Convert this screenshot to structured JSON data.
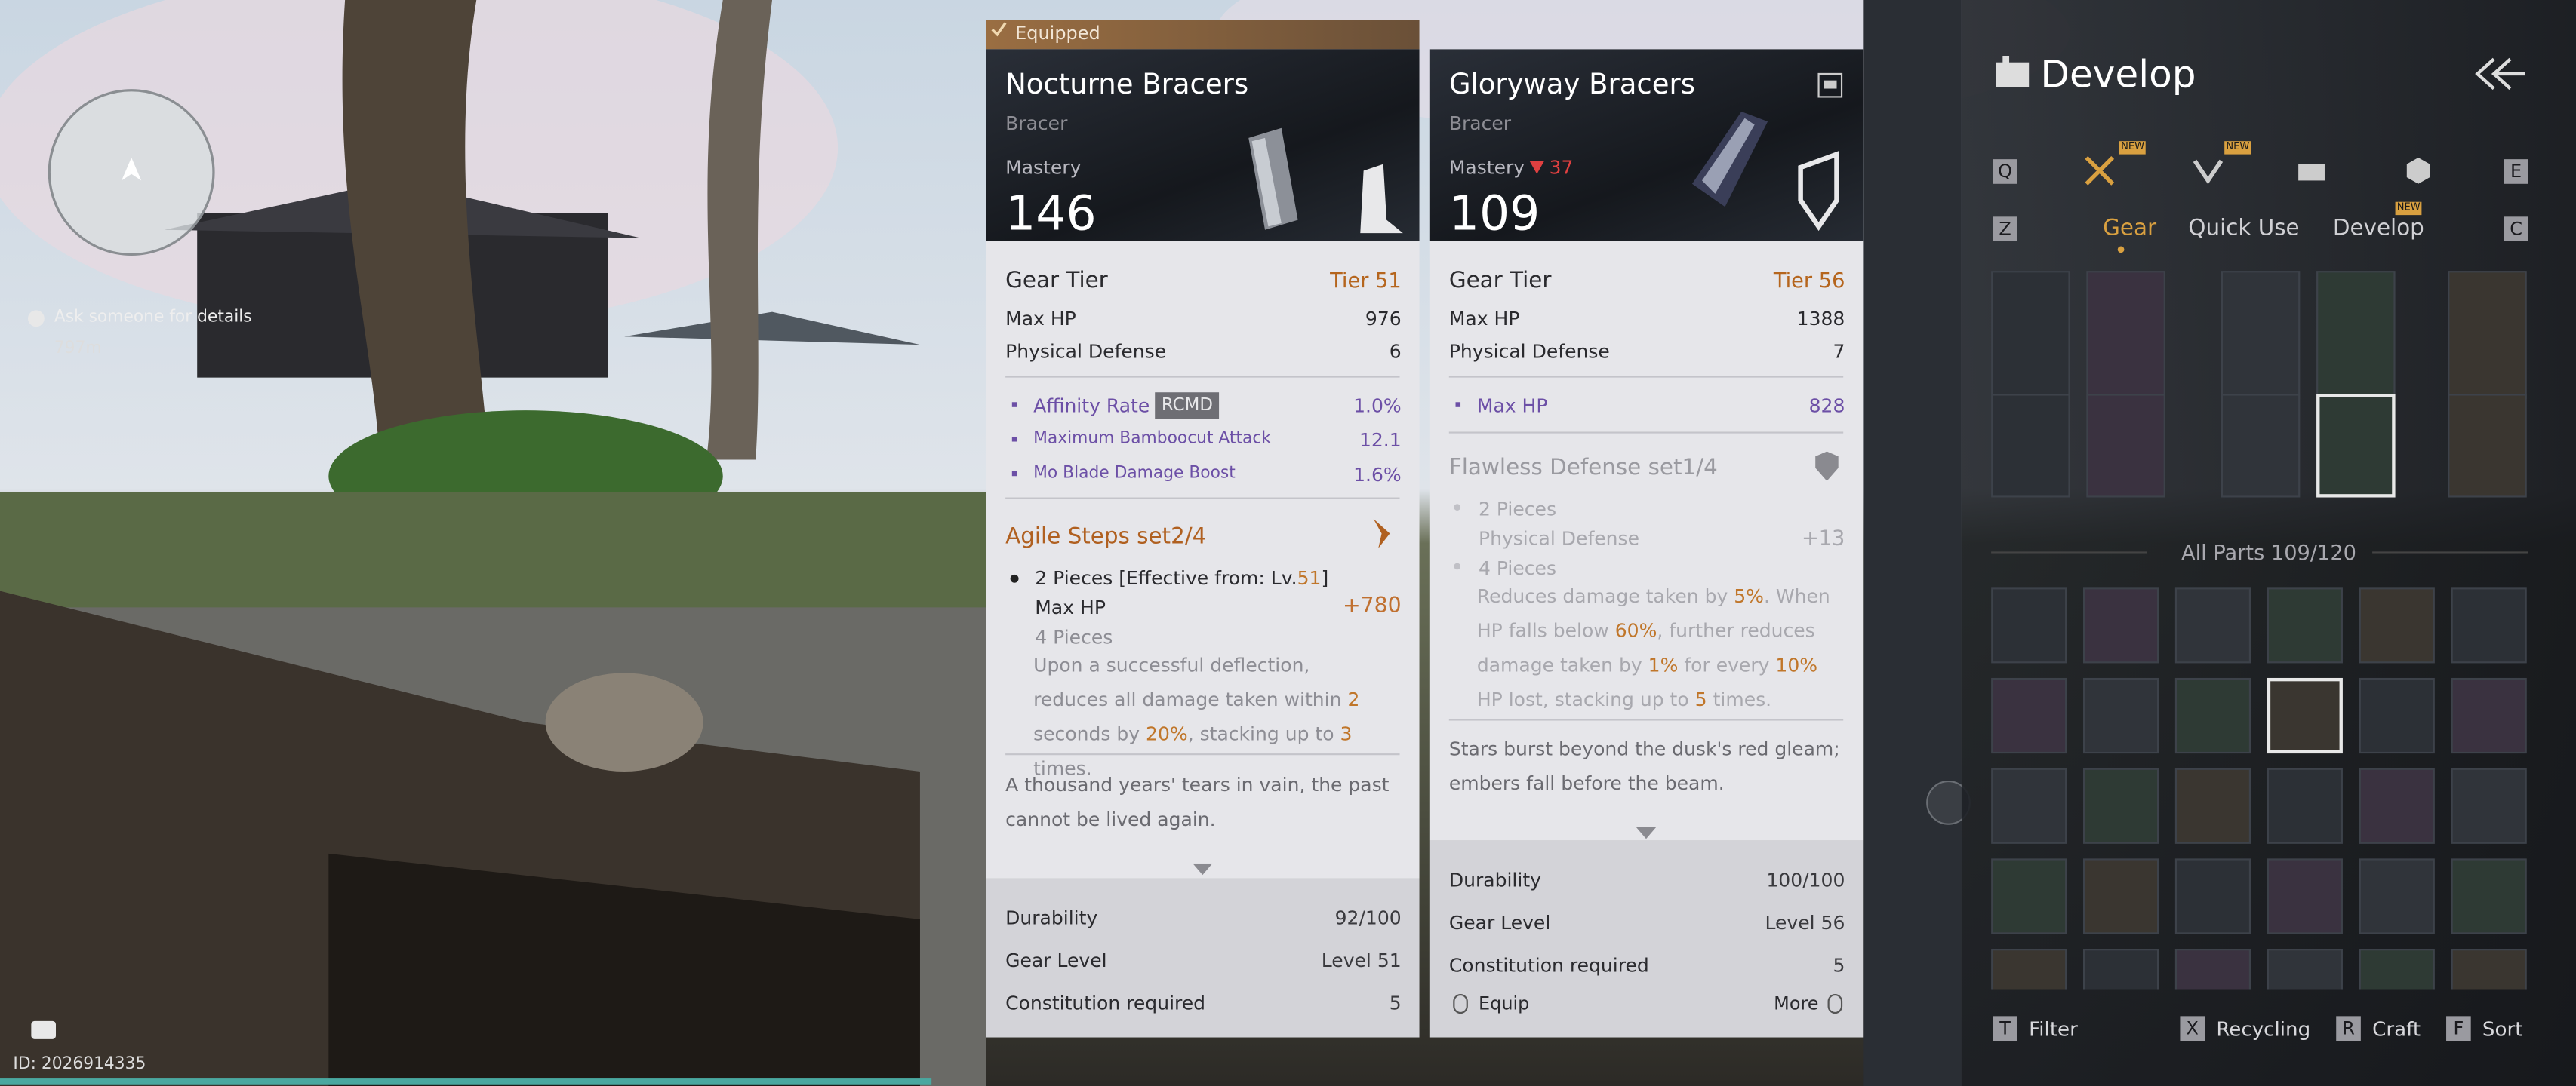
{
  "hud": {
    "quest": "Ask someone for details",
    "distance": "797m",
    "player_id": "ID: 2026914335"
  },
  "equipped": {
    "badge": "Equipped",
    "name": "Nocturne Bracers",
    "type": "Bracer",
    "mastery_label": "Mastery",
    "mastery": "146",
    "tier_label": "Gear Tier",
    "tier": "Tier 51",
    "stats": [
      {
        "label": "Max HP",
        "value": "976"
      },
      {
        "label": "Physical Defense",
        "value": "6"
      }
    ],
    "substats": [
      {
        "label": "Affinity Rate",
        "tag": "RCMD",
        "value": "1.0%"
      },
      {
        "label": "Maximum Bamboocut Attack",
        "value": "12.1"
      },
      {
        "label": "Mo Blade Damage Boost",
        "value": "1.6%"
      }
    ],
    "set_name": "Agile Steps set2/4",
    "piece2": [
      "2 Pieces [Effective from: Lv.",
      "51",
      "]"
    ],
    "piece2_stat": "Max HP",
    "piece2_value": "+780",
    "piece4": "4 Pieces",
    "piece4_desc": [
      "Upon a successful deflection, reduces all damage taken within ",
      "2",
      " seconds by ",
      "20%",
      ", stacking up to ",
      "3",
      " times."
    ],
    "flavor": "A thousand years' tears in vain, the past cannot be lived again.",
    "footer": [
      {
        "label": "Durability",
        "value": "92/100"
      },
      {
        "label": "Gear Level",
        "value": "Level 51"
      },
      {
        "label": "Constitution required",
        "value": "5"
      }
    ]
  },
  "compare": {
    "name": "Gloryway Bracers",
    "type": "Bracer",
    "mastery_label": "Mastery",
    "mastery_diff": "37",
    "mastery": "109",
    "tier_label": "Gear Tier",
    "tier": "Tier 56",
    "stats": [
      {
        "label": "Max HP",
        "value": "1388"
      },
      {
        "label": "Physical Defense",
        "value": "7"
      }
    ],
    "substats": [
      {
        "label": "Max HP",
        "value": "828"
      }
    ],
    "set_name": "Flawless Defense set1/4",
    "piece2": "2 Pieces",
    "piece2_stat": "Physical Defense",
    "piece2_value": "+13",
    "piece4": "4 Pieces",
    "piece4_desc": [
      "Reduces damage taken by ",
      "5%",
      ". When HP falls below ",
      "60%",
      ", further reduces damage taken by ",
      "1%",
      " for every ",
      "10%",
      " HP lost, stacking up to ",
      "5",
      " times."
    ],
    "flavor": "Stars burst beyond the dusk's red gleam; embers fall before the beam.",
    "footer": [
      {
        "label": "Durability",
        "value": "100/100"
      },
      {
        "label": "Gear Level",
        "value": "Level 56"
      },
      {
        "label": "Constitution required",
        "value": "5"
      }
    ],
    "equip": "Equip",
    "more": "More"
  },
  "develop": {
    "title": "Develop",
    "keys": {
      "prev_tab": "Q",
      "next_tab": "E",
      "prev_sub": "Z",
      "next_sub": "C"
    },
    "new_badge": "NEW",
    "subtabs": [
      "Gear",
      "Quick Use",
      "Develop"
    ],
    "all_parts": "All Parts 109/120",
    "actions": [
      {
        "key": "T",
        "label": "Filter"
      },
      {
        "key": "X",
        "label": "Recycling"
      },
      {
        "key": "R",
        "label": "Craft"
      },
      {
        "key": "F",
        "label": "Sort"
      }
    ]
  }
}
